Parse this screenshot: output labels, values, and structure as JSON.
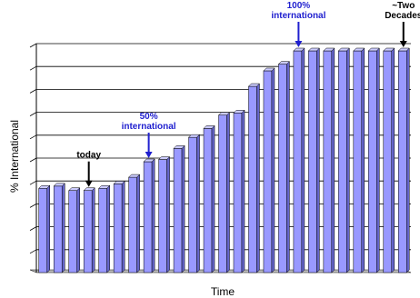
{
  "chart_data": {
    "type": "bar",
    "style": "3d-columns",
    "xlabel": "Time",
    "ylabel": "% International",
    "ylim": [
      0,
      100
    ],
    "grid": true,
    "bar_color": "#9999ff",
    "bar_side_color": "#6666cc",
    "bar_top_color": "#ccccff",
    "values": [
      38,
      39,
      37,
      37,
      38,
      40,
      43,
      50,
      51,
      56,
      61,
      65,
      71,
      72,
      84,
      91,
      94,
      100,
      100,
      100,
      100,
      100,
      100,
      100,
      100
    ],
    "annotations": [
      {
        "text": [
          "today"
        ],
        "bar_index": 3,
        "color": "#000000"
      },
      {
        "text": [
          "50%",
          "international"
        ],
        "bar_index": 7,
        "color": "#1f1fcf"
      },
      {
        "text": [
          "100%",
          "international"
        ],
        "bar_index": 17,
        "color": "#1f1fcf"
      },
      {
        "text": [
          "~Two",
          "Decades"
        ],
        "bar_index": 24,
        "color": "#000000"
      }
    ]
  }
}
